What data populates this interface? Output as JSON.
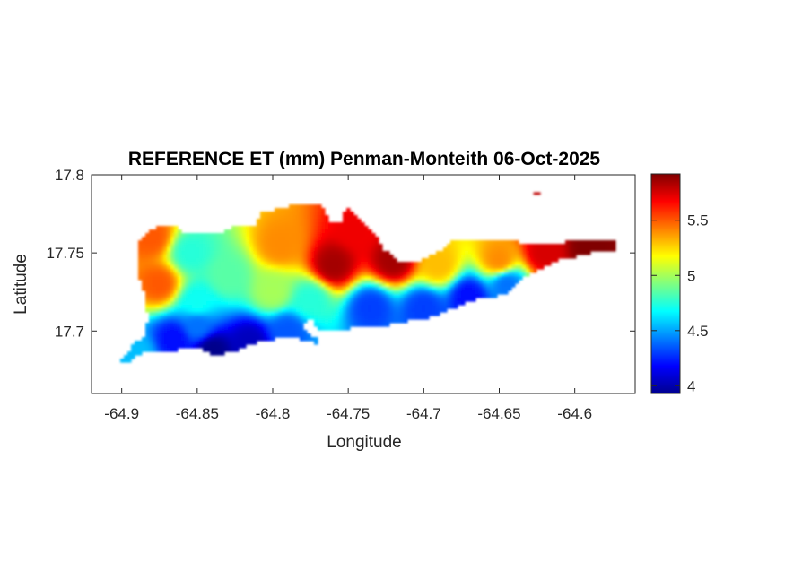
{
  "chart_data": {
    "type": "heatmap",
    "title": "REFERENCE ET (mm) Penman-Monteith 06-Oct-2025",
    "xlabel": "Longitude",
    "ylabel": "Latitude",
    "xlim": [
      -64.92,
      -64.56
    ],
    "ylim": [
      17.66,
      17.8
    ],
    "x_ticks": [
      -64.9,
      -64.85,
      -64.8,
      -64.75,
      -64.7,
      -64.65,
      -64.6
    ],
    "x_tick_labels": [
      "-64.9",
      "-64.85",
      "-64.8",
      "-64.75",
      "-64.7",
      "-64.65",
      "-64.6"
    ],
    "y_ticks": [
      17.7,
      17.75,
      17.8
    ],
    "y_tick_labels": [
      "17.7",
      "17.75",
      "17.8"
    ],
    "colorbar": {
      "range": [
        3.93,
        5.92
      ],
      "ticks": [
        4,
        4.5,
        5,
        5.5
      ],
      "tick_labels": [
        "4",
        "4.5",
        "5",
        "5.5"
      ],
      "colormap": "jet"
    },
    "grid": false,
    "field_centers": [
      {
        "lon": -64.84,
        "lat": 17.688,
        "value": 3.95
      },
      {
        "lon": -64.815,
        "lat": 17.693,
        "value": 4.05
      },
      {
        "lon": -64.865,
        "lat": 17.695,
        "value": 4.2
      },
      {
        "lon": -64.79,
        "lat": 17.7,
        "value": 4.35
      },
      {
        "lon": -64.89,
        "lat": 17.685,
        "value": 4.55
      },
      {
        "lon": -64.735,
        "lat": 17.715,
        "value": 4.3
      },
      {
        "lon": -64.7,
        "lat": 17.715,
        "value": 4.3
      },
      {
        "lon": -64.67,
        "lat": 17.722,
        "value": 4.2
      },
      {
        "lon": -64.645,
        "lat": 17.73,
        "value": 4.4
      },
      {
        "lon": -64.855,
        "lat": 17.75,
        "value": 4.75
      },
      {
        "lon": -64.83,
        "lat": 17.735,
        "value": 4.85
      },
      {
        "lon": -64.85,
        "lat": 17.718,
        "value": 4.7
      },
      {
        "lon": -64.8,
        "lat": 17.725,
        "value": 5.0
      },
      {
        "lon": -64.775,
        "lat": 17.72,
        "value": 4.75
      },
      {
        "lon": -64.875,
        "lat": 17.73,
        "value": 5.5
      },
      {
        "lon": -64.88,
        "lat": 17.76,
        "value": 5.5
      },
      {
        "lon": -64.795,
        "lat": 17.755,
        "value": 5.4
      },
      {
        "lon": -64.76,
        "lat": 17.742,
        "value": 5.85
      },
      {
        "lon": -64.745,
        "lat": 17.765,
        "value": 5.7
      },
      {
        "lon": -64.72,
        "lat": 17.745,
        "value": 5.85
      },
      {
        "lon": -64.69,
        "lat": 17.742,
        "value": 5.3
      },
      {
        "lon": -64.65,
        "lat": 17.745,
        "value": 5.4
      },
      {
        "lon": -64.62,
        "lat": 17.75,
        "value": 5.75
      },
      {
        "lon": -64.59,
        "lat": 17.753,
        "value": 5.92
      },
      {
        "lon": -64.625,
        "lat": 17.788,
        "value": 5.8
      },
      {
        "lon": -64.85,
        "lat": 17.703,
        "value": 4.4
      }
    ]
  }
}
